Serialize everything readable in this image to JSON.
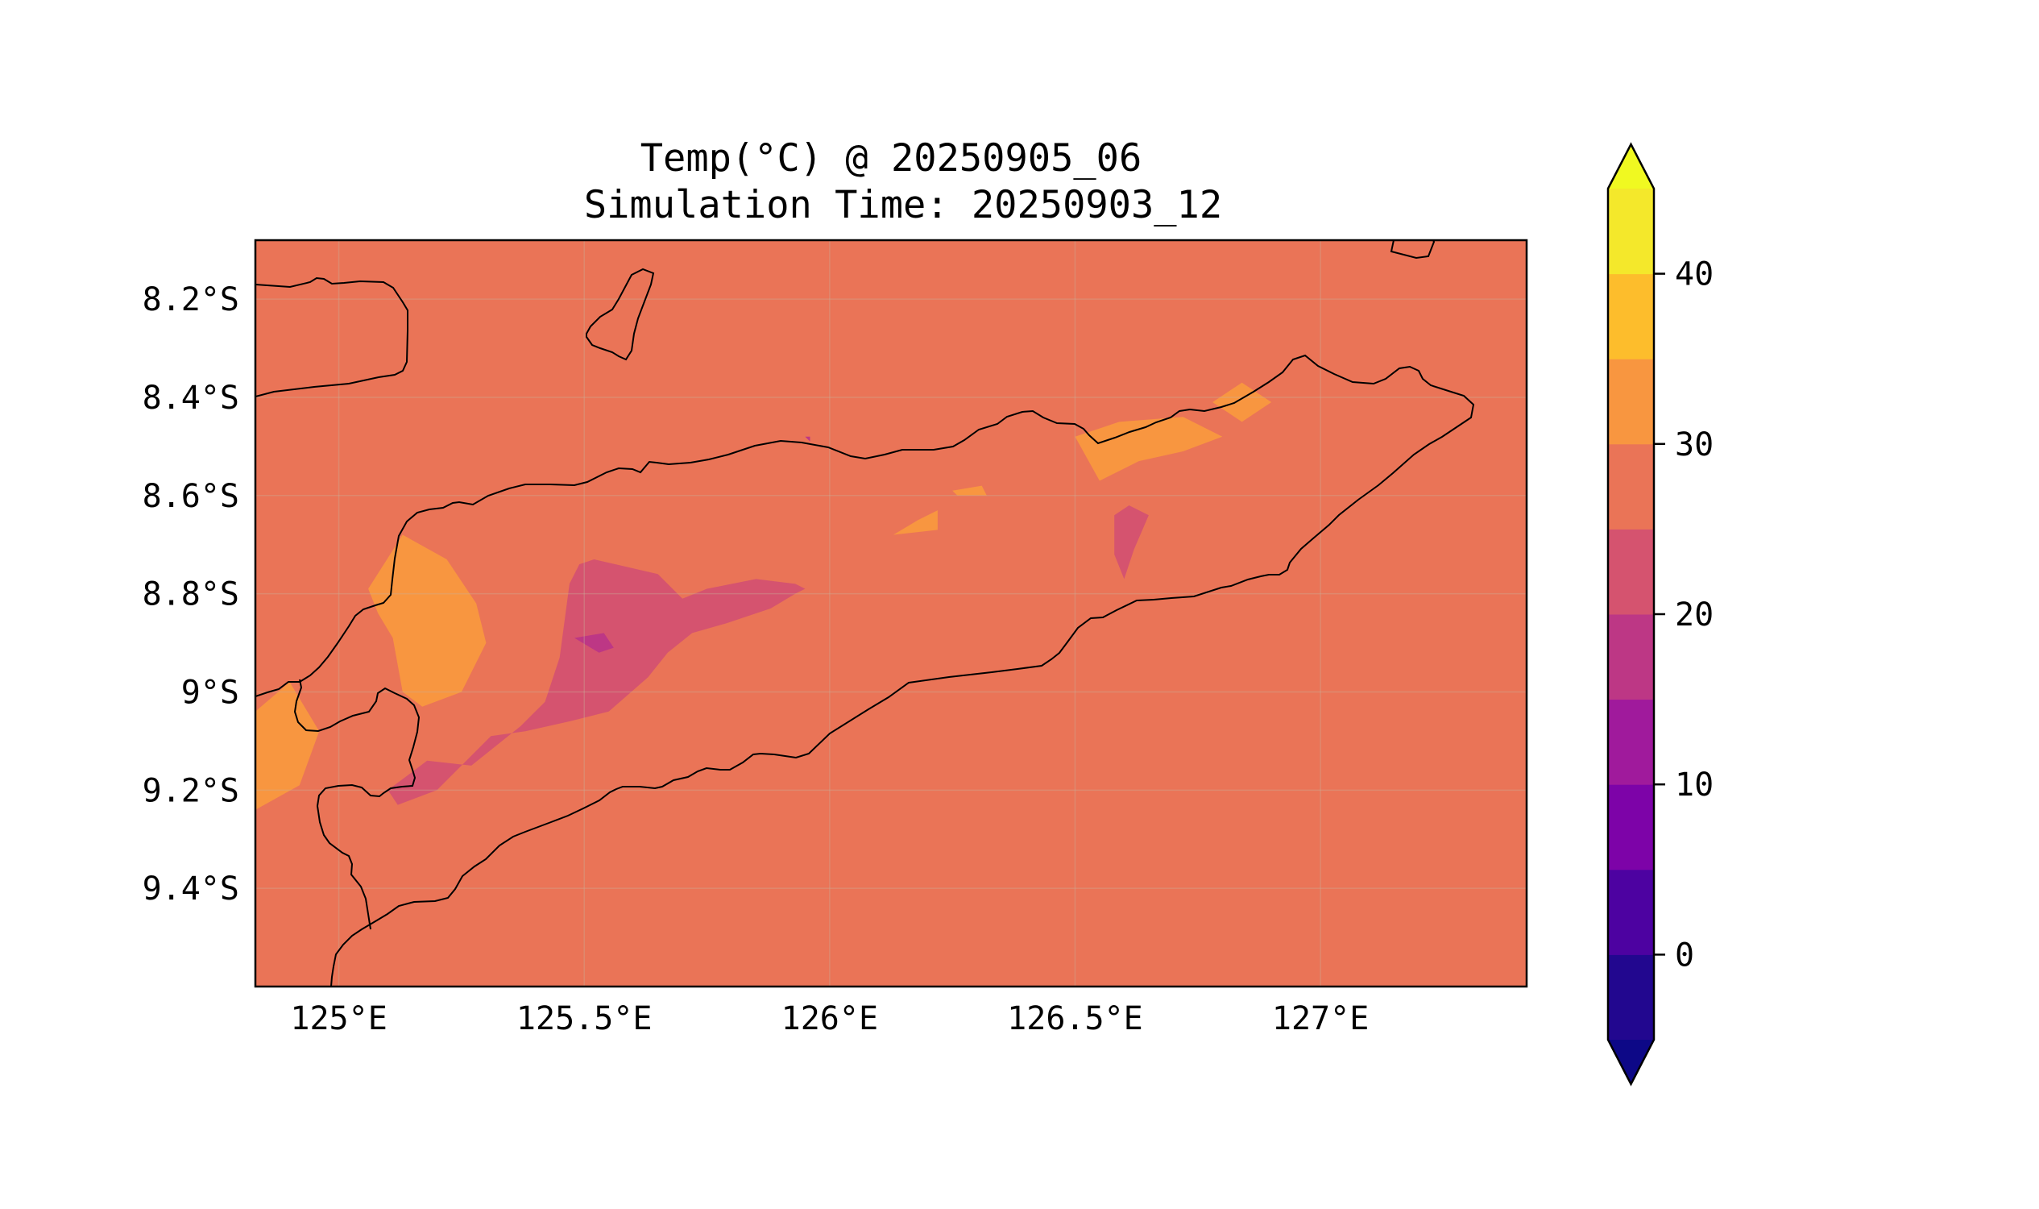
{
  "title": {
    "line1": "Temp(°C) @ 20250905_06",
    "line2": "Simulation Time: 20250903_12"
  },
  "map": {
    "lon_range": [
      124.83,
      127.42
    ],
    "lat_range": [
      -9.6,
      -8.08
    ],
    "lon_ticks": [
      {
        "value": 125.0,
        "label": "125°E"
      },
      {
        "value": 125.5,
        "label": "125.5°E"
      },
      {
        "value": 126.0,
        "label": "126°E"
      },
      {
        "value": 126.5,
        "label": "126.5°E"
      },
      {
        "value": 127.0,
        "label": "127°E"
      }
    ],
    "lat_ticks": [
      {
        "value": -8.2,
        "label": "8.2°S"
      },
      {
        "value": -8.4,
        "label": "8.4°S"
      },
      {
        "value": -8.6,
        "label": "8.6°S"
      },
      {
        "value": -8.8,
        "label": "8.8°S"
      },
      {
        "value": -9.0,
        "label": "9°S"
      },
      {
        "value": -9.2,
        "label": "9.2°S"
      },
      {
        "value": -9.4,
        "label": "9.4°S"
      }
    ],
    "grid": true
  },
  "colorbar": {
    "levels": [
      -5,
      0,
      5,
      10,
      15,
      20,
      25,
      30,
      35,
      40,
      45
    ],
    "colors": [
      "#22078f",
      "#4d02a1",
      "#7d03a8",
      "#a01a9c",
      "#bd3785",
      "#d5536f",
      "#ea7457",
      "#f89640",
      "#fdbd2c",
      "#f4e82b"
    ],
    "under_color": "#0d0887",
    "over_color": "#f0f921",
    "tick_values": [
      0,
      10,
      20,
      30,
      40
    ],
    "tick_labels": [
      "0",
      "10",
      "20",
      "30",
      "40"
    ],
    "extend": "both"
  },
  "chart_data": {
    "type": "heatmap",
    "variable": "Temp(°C)",
    "background_level": "25-30",
    "regions": [
      {
        "level": "30-35",
        "points": [
          [
            124.83,
            -9.04
          ],
          [
            124.9,
            -8.98
          ],
          [
            124.96,
            -9.08
          ],
          [
            124.92,
            -9.19
          ],
          [
            124.83,
            -9.24
          ]
        ]
      },
      {
        "level": "30-35",
        "points": [
          [
            125.06,
            -8.79
          ],
          [
            125.13,
            -8.68
          ],
          [
            125.22,
            -8.73
          ],
          [
            125.28,
            -8.82
          ],
          [
            125.3,
            -8.9
          ],
          [
            125.25,
            -9.0
          ],
          [
            125.17,
            -9.03
          ],
          [
            125.13,
            -9.0
          ],
          [
            125.11,
            -8.89
          ],
          [
            125.08,
            -8.84
          ]
        ]
      },
      {
        "level": "30-35",
        "points": [
          [
            126.13,
            -8.68
          ],
          [
            126.18,
            -8.65
          ],
          [
            126.22,
            -8.63
          ],
          [
            126.22,
            -8.67
          ]
        ]
      },
      {
        "level": "30-35",
        "points": [
          [
            126.25,
            -8.59
          ],
          [
            126.31,
            -8.58
          ],
          [
            126.32,
            -8.6
          ],
          [
            126.26,
            -8.6
          ]
        ]
      },
      {
        "level": "30-35",
        "points": [
          [
            126.5,
            -8.48
          ],
          [
            126.59,
            -8.45
          ],
          [
            126.72,
            -8.44
          ],
          [
            126.8,
            -8.48
          ],
          [
            126.72,
            -8.51
          ],
          [
            126.63,
            -8.53
          ],
          [
            126.55,
            -8.57
          ]
        ]
      },
      {
        "level": "30-35",
        "points": [
          [
            126.78,
            -8.41
          ],
          [
            126.84,
            -8.37
          ],
          [
            126.9,
            -8.41
          ],
          [
            126.84,
            -8.45
          ]
        ]
      },
      {
        "level": "20-25",
        "points": [
          [
            125.27,
            -9.15
          ],
          [
            125.37,
            -9.07
          ],
          [
            125.42,
            -9.02
          ],
          [
            125.45,
            -8.93
          ],
          [
            125.47,
            -8.78
          ],
          [
            125.49,
            -8.74
          ],
          [
            125.52,
            -8.73
          ],
          [
            125.65,
            -8.76
          ],
          [
            125.7,
            -8.81
          ],
          [
            125.75,
            -8.79
          ],
          [
            125.85,
            -8.77
          ],
          [
            125.93,
            -8.78
          ],
          [
            125.95,
            -8.79
          ],
          [
            125.93,
            -8.8
          ],
          [
            125.88,
            -8.83
          ],
          [
            125.79,
            -8.86
          ],
          [
            125.72,
            -8.88
          ],
          [
            125.67,
            -8.92
          ],
          [
            125.63,
            -8.97
          ],
          [
            125.55,
            -9.04
          ],
          [
            125.47,
            -9.06
          ],
          [
            125.38,
            -9.08
          ],
          [
            125.31,
            -9.09
          ],
          [
            125.2,
            -9.2
          ],
          [
            125.12,
            -9.23
          ],
          [
            125.1,
            -9.2
          ],
          [
            125.18,
            -9.14
          ]
        ]
      },
      {
        "level": "20-25",
        "points": [
          [
            126.58,
            -8.64
          ],
          [
            126.61,
            -8.62
          ],
          [
            126.65,
            -8.64
          ],
          [
            126.62,
            -8.71
          ],
          [
            126.6,
            -8.77
          ],
          [
            126.58,
            -8.72
          ]
        ]
      },
      {
        "level": "15-20",
        "points": [
          [
            125.48,
            -8.89
          ],
          [
            125.54,
            -8.88
          ],
          [
            125.56,
            -8.91
          ],
          [
            125.53,
            -8.92
          ]
        ]
      },
      {
        "level": "15-20",
        "points": [
          [
            125.95,
            -8.48
          ],
          [
            125.96,
            -8.48
          ],
          [
            125.96,
            -8.49
          ]
        ]
      }
    ]
  }
}
